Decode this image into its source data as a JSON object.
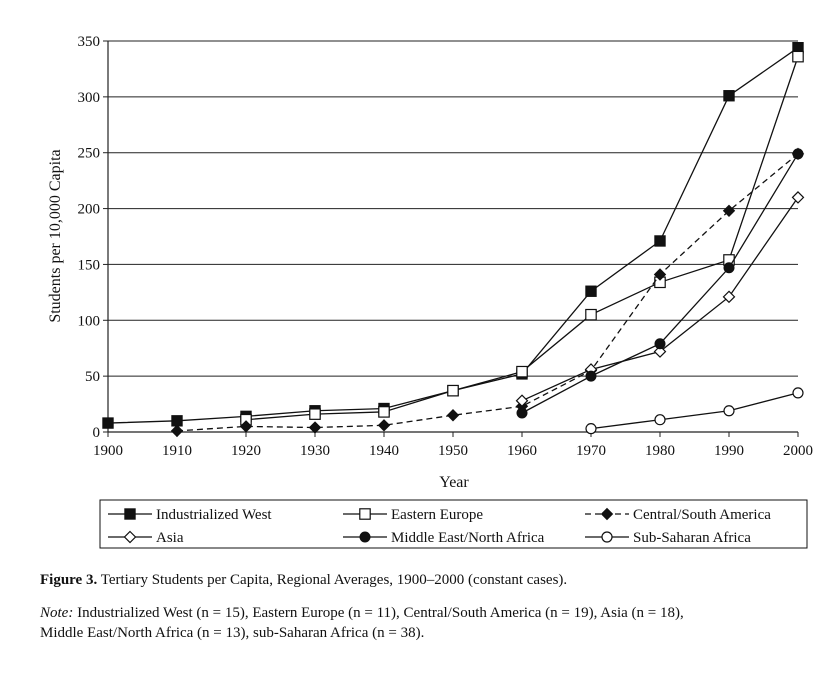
{
  "chart_data": {
    "type": "line",
    "xlabel": "Year",
    "ylabel": "Students per 10,000 Capita",
    "xlim": [
      1900,
      2000
    ],
    "ylim": [
      0,
      350
    ],
    "x_ticks": [
      1900,
      1910,
      1920,
      1930,
      1940,
      1950,
      1960,
      1970,
      1980,
      1990,
      2000
    ],
    "y_ticks": [
      0,
      50,
      100,
      150,
      200,
      250,
      300,
      350
    ],
    "grid": "horizontal",
    "legend_position": "bottom",
    "series": [
      {
        "name": "Industrialized West",
        "marker": "square-filled",
        "dash": "solid",
        "x": [
          1900,
          1910,
          1920,
          1930,
          1940,
          1950,
          1960,
          1970,
          1980,
          1990,
          2000
        ],
        "y": [
          8,
          10,
          14,
          19,
          21,
          37,
          52,
          126,
          171,
          301,
          344
        ]
      },
      {
        "name": "Eastern Europe",
        "marker": "square-open",
        "dash": "solid",
        "x": [
          1920,
          1930,
          1940,
          1950,
          1960,
          1970,
          1980,
          1990,
          2000
        ],
        "y": [
          11,
          16,
          18,
          37,
          54,
          105,
          134,
          154,
          336
        ]
      },
      {
        "name": "Central/South America",
        "marker": "diamond-filled",
        "dash": "dashed",
        "x": [
          1910,
          1920,
          1930,
          1940,
          1950,
          1960,
          1970,
          1980,
          1990,
          2000
        ],
        "y": [
          1,
          5,
          4,
          6,
          15,
          23,
          55,
          141,
          198,
          249
        ]
      },
      {
        "name": "Asia",
        "marker": "diamond-open",
        "dash": "solid",
        "x": [
          1960,
          1970,
          1980,
          1990,
          2000
        ],
        "y": [
          28,
          56,
          72,
          121,
          210
        ]
      },
      {
        "name": "Middle East/North Africa",
        "marker": "circle-filled",
        "dash": "solid",
        "x": [
          1960,
          1970,
          1980,
          1990,
          2000
        ],
        "y": [
          17,
          50,
          79,
          147,
          249
        ]
      },
      {
        "name": "Sub-Saharan Africa",
        "marker": "circle-open",
        "dash": "solid",
        "x": [
          1970,
          1980,
          1990,
          2000
        ],
        "y": [
          3,
          11,
          19,
          35
        ]
      }
    ]
  },
  "caption": {
    "label": "Figure 3.",
    "text": "Tertiary Students per Capita, Regional Averages, 1900–2000 (constant cases)."
  },
  "note": {
    "label": "Note:",
    "line1": "Industrialized West (n = 15), Eastern Europe (n = 11), Central/South America (n = 19), Asia (n = 18),",
    "line2": "Middle East/North Africa (n = 13), sub-Saharan Africa (n = 38)."
  }
}
